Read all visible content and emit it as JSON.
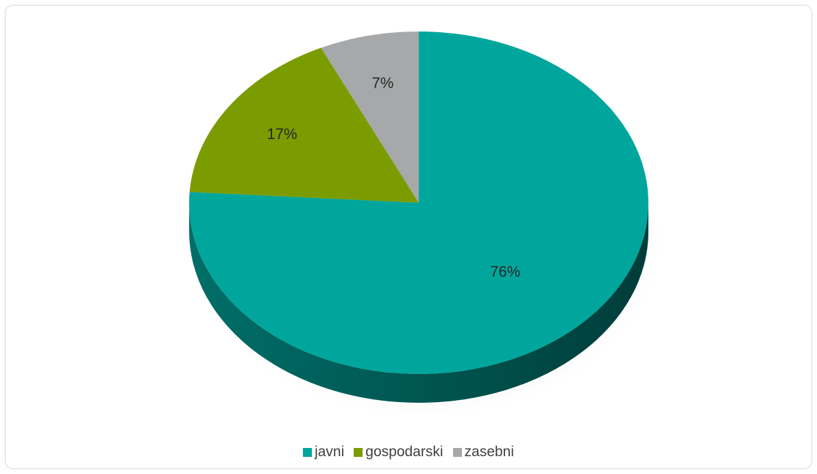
{
  "chart_data": {
    "type": "pie",
    "style": "3d",
    "categories": [
      "javni",
      "gospodarski",
      "zasebni"
    ],
    "values": [
      76,
      17,
      7
    ],
    "data_labels": [
      "76%",
      "17%",
      "7%"
    ],
    "colors": [
      "#00a69c",
      "#7b9c00",
      "#a6a8aa"
    ],
    "side_colors": [
      "#006e68",
      "#52690a",
      "#6f7173"
    ],
    "legend_position": "bottom",
    "start_angle": "12 o'clock",
    "direction": "clockwise"
  }
}
